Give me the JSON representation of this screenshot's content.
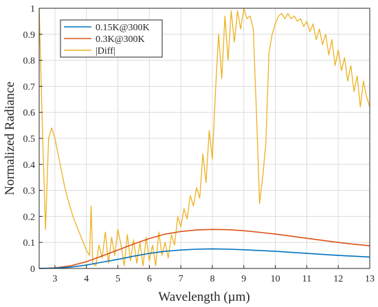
{
  "chart_data": {
    "type": "line",
    "xlabel": "Wavelength (µm)",
    "ylabel": "Normalized Radiance",
    "xlim": [
      2.5,
      13
    ],
    "ylim": [
      0,
      1
    ],
    "x_ticks": [
      "3",
      "4",
      "5",
      "6",
      "7",
      "8",
      "9",
      "10",
      "11",
      "12",
      "13"
    ],
    "y_ticks": [
      "0",
      "0.1",
      "0.2",
      "0.3",
      "0.4",
      "0.5",
      "0.6",
      "0.7",
      "0.8",
      "0.9",
      "1"
    ],
    "grid": true,
    "legend_position": "top-left",
    "series": [
      {
        "name": "0.15K@300K",
        "color": "#0072BD",
        "x": [
          2.5,
          3,
          3.5,
          4,
          4.5,
          5,
          5.5,
          6,
          6.5,
          7,
          7.5,
          8,
          8.5,
          9,
          9.5,
          10,
          10.5,
          11,
          11.5,
          12,
          12.5,
          13
        ],
        "y": [
          0,
          0.001,
          0.005,
          0.013,
          0.024,
          0.035,
          0.047,
          0.058,
          0.066,
          0.071,
          0.074,
          0.075,
          0.074,
          0.072,
          0.069,
          0.066,
          0.062,
          0.058,
          0.054,
          0.05,
          0.047,
          0.044
        ]
      },
      {
        "name": "0.3K@300K",
        "color": "#D95319",
        "x": [
          2.5,
          3,
          3.5,
          4,
          4.5,
          5,
          5.5,
          6,
          6.5,
          7,
          7.5,
          8,
          8.5,
          9,
          9.5,
          10,
          10.5,
          11,
          11.5,
          12,
          12.5,
          13
        ],
        "y": [
          0,
          0.002,
          0.01,
          0.026,
          0.048,
          0.071,
          0.094,
          0.115,
          0.132,
          0.142,
          0.148,
          0.15,
          0.149,
          0.145,
          0.139,
          0.132,
          0.124,
          0.116,
          0.108,
          0.1,
          0.093,
          0.087
        ]
      },
      {
        "name": "|Diff|",
        "color": "#EDB120",
        "x": [
          2.5,
          2.6,
          2.7,
          2.8,
          2.9,
          3.0,
          3.1,
          3.2,
          3.3,
          3.4,
          3.5,
          3.6,
          3.7,
          3.8,
          3.9,
          4.0,
          4.1,
          4.15,
          4.2,
          4.3,
          4.4,
          4.5,
          4.6,
          4.7,
          4.8,
          4.9,
          5.0,
          5.1,
          5.2,
          5.3,
          5.4,
          5.5,
          5.6,
          5.7,
          5.8,
          5.9,
          6.0,
          6.1,
          6.2,
          6.3,
          6.4,
          6.5,
          6.6,
          6.7,
          6.8,
          6.9,
          7.0,
          7.1,
          7.2,
          7.3,
          7.4,
          7.5,
          7.6,
          7.7,
          7.8,
          7.9,
          8.0,
          8.1,
          8.2,
          8.3,
          8.4,
          8.5,
          8.6,
          8.7,
          8.8,
          8.9,
          9.0,
          9.1,
          9.2,
          9.3,
          9.4,
          9.5,
          9.6,
          9.7,
          9.8,
          9.9,
          10.0,
          10.1,
          10.2,
          10.3,
          10.4,
          10.5,
          10.6,
          10.7,
          10.8,
          10.9,
          11.0,
          11.1,
          11.2,
          11.3,
          11.4,
          11.5,
          11.6,
          11.7,
          11.8,
          11.9,
          12.0,
          12.1,
          12.2,
          12.3,
          12.4,
          12.5,
          12.6,
          12.7,
          12.8,
          12.9,
          13.0
        ],
        "y": [
          1.0,
          0.55,
          0.15,
          0.5,
          0.54,
          0.5,
          0.44,
          0.38,
          0.32,
          0.27,
          0.23,
          0.19,
          0.16,
          0.13,
          0.1,
          0.07,
          0.05,
          0.24,
          0.02,
          0.01,
          0.09,
          0.04,
          0.14,
          0.02,
          0.12,
          0.05,
          0.15,
          0.09,
          0.01,
          0.13,
          0.03,
          0.11,
          0.02,
          0.1,
          0.01,
          0.12,
          0.03,
          0.09,
          0.01,
          0.14,
          0.05,
          0.1,
          0.04,
          0.13,
          0.09,
          0.2,
          0.16,
          0.23,
          0.19,
          0.28,
          0.24,
          0.31,
          0.27,
          0.44,
          0.33,
          0.53,
          0.42,
          0.68,
          0.9,
          0.73,
          0.97,
          0.8,
          0.99,
          0.87,
          0.99,
          0.92,
          1.0,
          0.96,
          0.97,
          0.92,
          0.6,
          0.25,
          0.35,
          0.48,
          0.83,
          0.9,
          0.94,
          0.97,
          0.98,
          0.96,
          0.98,
          0.96,
          0.97,
          0.95,
          0.96,
          0.93,
          0.95,
          0.91,
          0.94,
          0.88,
          0.92,
          0.86,
          0.9,
          0.82,
          0.88,
          0.78,
          0.84,
          0.76,
          0.81,
          0.72,
          0.78,
          0.68,
          0.74,
          0.62,
          0.72,
          0.66,
          0.62
        ]
      }
    ]
  }
}
